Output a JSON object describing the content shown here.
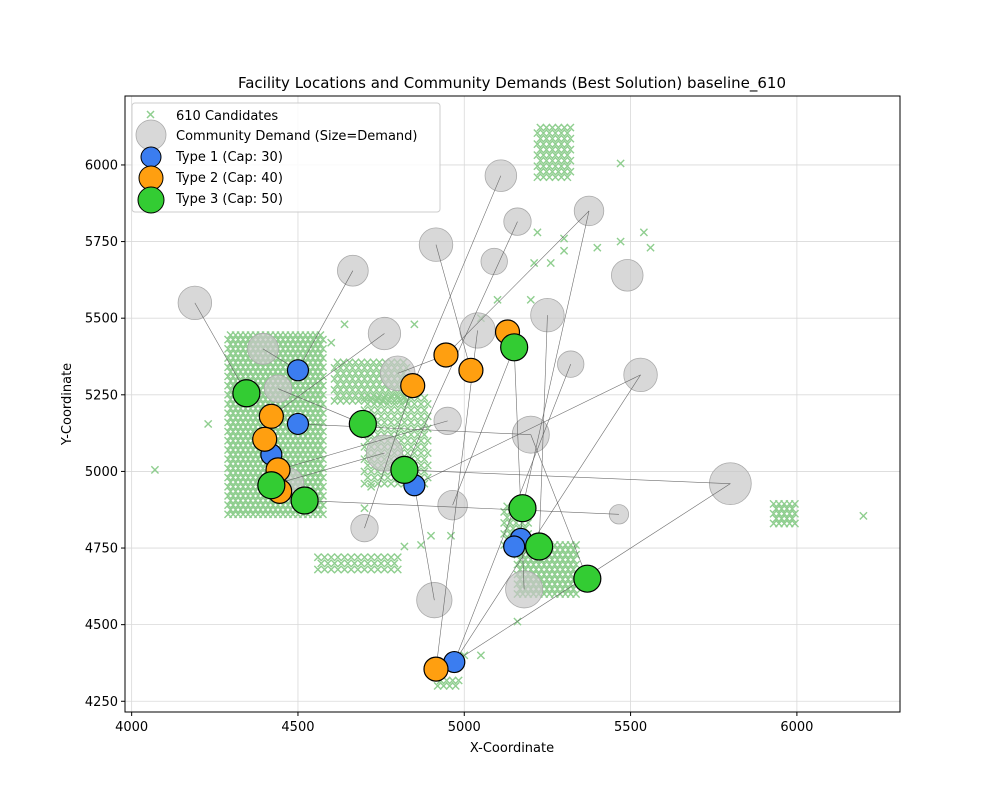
{
  "chart_data": {
    "type": "scatter",
    "title": "Facility Locations and Community Demands (Best Solution) baseline_610",
    "xlabel": "X-Coordinate",
    "ylabel": "Y-Coordinate",
    "xlim": [
      3980,
      6310
    ],
    "ylim": [
      4215,
      6225
    ],
    "xticks": [
      4000,
      4500,
      5000,
      5500,
      6000
    ],
    "yticks": [
      4250,
      4500,
      4750,
      5000,
      5250,
      5500,
      5750,
      6000
    ],
    "grid": true,
    "legend_position": "top-left",
    "colors": {
      "candidate": "#8fce8f",
      "community": "#c8c8c8",
      "type1": "#3b7df0",
      "type2": "#ff9f10",
      "type3": "#33cc33",
      "assignment_line": "#555555"
    },
    "legend": [
      {
        "key": "candidate",
        "label": "610 Candidates"
      },
      {
        "key": "community",
        "label": "Community Demand (Size=Demand)"
      },
      {
        "key": "type1",
        "label": "Type 1 (Cap: 30)"
      },
      {
        "key": "type2",
        "label": "Type 2 (Cap: 40)"
      },
      {
        "key": "type3",
        "label": "Type 3 (Cap: 50)"
      }
    ],
    "candidate_regions": [
      {
        "x": [
          4290,
          4580
        ],
        "y": [
          4860,
          5450
        ],
        "dx": 15,
        "dy": 15
      },
      {
        "x": [
          4610,
          4830
        ],
        "y": [
          5230,
          5360
        ],
        "dx": 18,
        "dy": 18
      },
      {
        "x": [
          4700,
          4890
        ],
        "y": [
          4960,
          5250
        ],
        "dx": 20,
        "dy": 20
      },
      {
        "x": [
          4560,
          4800
        ],
        "y": [
          4680,
          4720
        ],
        "dx": 20,
        "dy": 20
      },
      {
        "x": [
          5160,
          5340
        ],
        "y": [
          4600,
          4760
        ],
        "dx": 16,
        "dy": 16
      },
      {
        "x": [
          5120,
          5200
        ],
        "y": [
          4760,
          4900
        ],
        "dx": 18,
        "dy": 18
      },
      {
        "x": [
          5220,
          5320
        ],
        "y": [
          5960,
          6130
        ],
        "dx": 18,
        "dy": 18
      },
      {
        "x": [
          5930,
          6000
        ],
        "y": [
          4830,
          4900
        ],
        "dx": 16,
        "dy": 16
      },
      {
        "x": [
          4920,
          4990
        ],
        "y": [
          4300,
          4330
        ],
        "dx": 18,
        "dy": 18
      }
    ],
    "candidate_points": [
      [
        4070,
        5005
      ],
      [
        6200,
        4855
      ],
      [
        5470,
        6005
      ],
      [
        5400,
        5730
      ],
      [
        5470,
        5750
      ],
      [
        5540,
        5780
      ],
      [
        5560,
        5730
      ],
      [
        5300,
        5720
      ],
      [
        5260,
        5680
      ],
      [
        5220,
        5780
      ],
      [
        5210,
        5680
      ],
      [
        5100,
        5560
      ],
      [
        5200,
        5560
      ],
      [
        5050,
        5500
      ],
      [
        4700,
        4880
      ],
      [
        4900,
        4790
      ],
      [
        4960,
        4790
      ],
      [
        5000,
        4400
      ],
      [
        5050,
        4400
      ],
      [
        5160,
        4510
      ],
      [
        4850,
        5480
      ],
      [
        4870,
        4760
      ],
      [
        4720,
        4950
      ],
      [
        4640,
        5480
      ],
      [
        4600,
        5420
      ],
      [
        5300,
        5760
      ],
      [
        4820,
        4755
      ],
      [
        4230,
        5155
      ]
    ],
    "communities": [
      {
        "x": 5110,
        "y": 5965,
        "demand": 40
      },
      {
        "x": 5375,
        "y": 5850,
        "demand": 35
      },
      {
        "x": 5160,
        "y": 5815,
        "demand": 30
      },
      {
        "x": 4915,
        "y": 5740,
        "demand": 45
      },
      {
        "x": 5090,
        "y": 5685,
        "demand": 28
      },
      {
        "x": 4665,
        "y": 5655,
        "demand": 38
      },
      {
        "x": 5490,
        "y": 5640,
        "demand": 40
      },
      {
        "x": 4190,
        "y": 5550,
        "demand": 45
      },
      {
        "x": 5250,
        "y": 5510,
        "demand": 45
      },
      {
        "x": 5040,
        "y": 5460,
        "demand": 50
      },
      {
        "x": 4760,
        "y": 5450,
        "demand": 42
      },
      {
        "x": 4395,
        "y": 5400,
        "demand": 38
      },
      {
        "x": 5320,
        "y": 5350,
        "demand": 28
      },
      {
        "x": 4800,
        "y": 5320,
        "demand": 48
      },
      {
        "x": 5530,
        "y": 5315,
        "demand": 45
      },
      {
        "x": 4440,
        "y": 5270,
        "demand": 30
      },
      {
        "x": 4950,
        "y": 5165,
        "demand": 30
      },
      {
        "x": 5200,
        "y": 5120,
        "demand": 55
      },
      {
        "x": 4760,
        "y": 5060,
        "demand": 52
      },
      {
        "x": 5800,
        "y": 4960,
        "demand": 70
      },
      {
        "x": 4470,
        "y": 4960,
        "demand": 40
      },
      {
        "x": 4965,
        "y": 4890,
        "demand": 35
      },
      {
        "x": 5465,
        "y": 4860,
        "demand": 15
      },
      {
        "x": 4700,
        "y": 4815,
        "demand": 30
      },
      {
        "x": 5180,
        "y": 4615,
        "demand": 55
      },
      {
        "x": 4910,
        "y": 4580,
        "demand": 50
      }
    ],
    "facilities": [
      {
        "x": 4500,
        "y": 5330,
        "type": 1
      },
      {
        "x": 4500,
        "y": 5155,
        "type": 1
      },
      {
        "x": 4420,
        "y": 5055,
        "type": 1
      },
      {
        "x": 4850,
        "y": 4955,
        "type": 1
      },
      {
        "x": 5170,
        "y": 4780,
        "type": 1
      },
      {
        "x": 5150,
        "y": 4755,
        "type": 1
      },
      {
        "x": 4970,
        "y": 4378,
        "type": 1
      },
      {
        "x": 5130,
        "y": 5455,
        "type": 2
      },
      {
        "x": 4945,
        "y": 5380,
        "type": 2
      },
      {
        "x": 5020,
        "y": 5330,
        "type": 2
      },
      {
        "x": 4845,
        "y": 5280,
        "type": 2
      },
      {
        "x": 4420,
        "y": 5180,
        "type": 2
      },
      {
        "x": 4400,
        "y": 5105,
        "type": 2
      },
      {
        "x": 4440,
        "y": 5005,
        "type": 2
      },
      {
        "x": 4445,
        "y": 4935,
        "type": 2
      },
      {
        "x": 4915,
        "y": 4355,
        "type": 2
      },
      {
        "x": 5150,
        "y": 5405,
        "type": 3
      },
      {
        "x": 4345,
        "y": 5255,
        "type": 3
      },
      {
        "x": 4695,
        "y": 5155,
        "type": 3
      },
      {
        "x": 4820,
        "y": 5005,
        "type": 3
      },
      {
        "x": 4420,
        "y": 4955,
        "type": 3
      },
      {
        "x": 4520,
        "y": 4905,
        "type": 3
      },
      {
        "x": 5175,
        "y": 4880,
        "type": 3
      },
      {
        "x": 5225,
        "y": 4755,
        "type": 3
      },
      {
        "x": 5370,
        "y": 4650,
        "type": 3
      }
    ],
    "assignments": [
      [
        4190,
        5550,
        4345,
        5255
      ],
      [
        4395,
        5400,
        4500,
        5330
      ],
      [
        4665,
        5655,
        4500,
        5330
      ],
      [
        4760,
        5450,
        4420,
        5180
      ],
      [
        4440,
        5270,
        4695,
        5155
      ],
      [
        4800,
        5320,
        4945,
        5380
      ],
      [
        4915,
        5740,
        5020,
        5330
      ],
      [
        5110,
        5965,
        4845,
        5280
      ],
      [
        5160,
        5815,
        4820,
        5005
      ],
      [
        5375,
        5850,
        5175,
        4880
      ],
      [
        5375,
        5850,
        4945,
        5380
      ],
      [
        5250,
        5510,
        5225,
        4755
      ],
      [
        5040,
        5460,
        4915,
        4355
      ],
      [
        5320,
        5350,
        4970,
        4378
      ],
      [
        5530,
        5315,
        4850,
        4955
      ],
      [
        5530,
        5315,
        4970,
        4378
      ],
      [
        5200,
        5120,
        5370,
        4650
      ],
      [
        5200,
        5120,
        4500,
        5155
      ],
      [
        5800,
        4960,
        4820,
        5005
      ],
      [
        5800,
        4960,
        4970,
        4378
      ],
      [
        5465,
        4860,
        4520,
        4905
      ],
      [
        4965,
        4890,
        5150,
        5405
      ],
      [
        4700,
        4815,
        4845,
        5280
      ],
      [
        5180,
        4615,
        5150,
        5405
      ],
      [
        4910,
        4580,
        4850,
        4955
      ],
      [
        4760,
        5060,
        4420,
        4955
      ],
      [
        4470,
        4960,
        4400,
        5105
      ],
      [
        4950,
        5165,
        4440,
        5005
      ]
    ]
  }
}
